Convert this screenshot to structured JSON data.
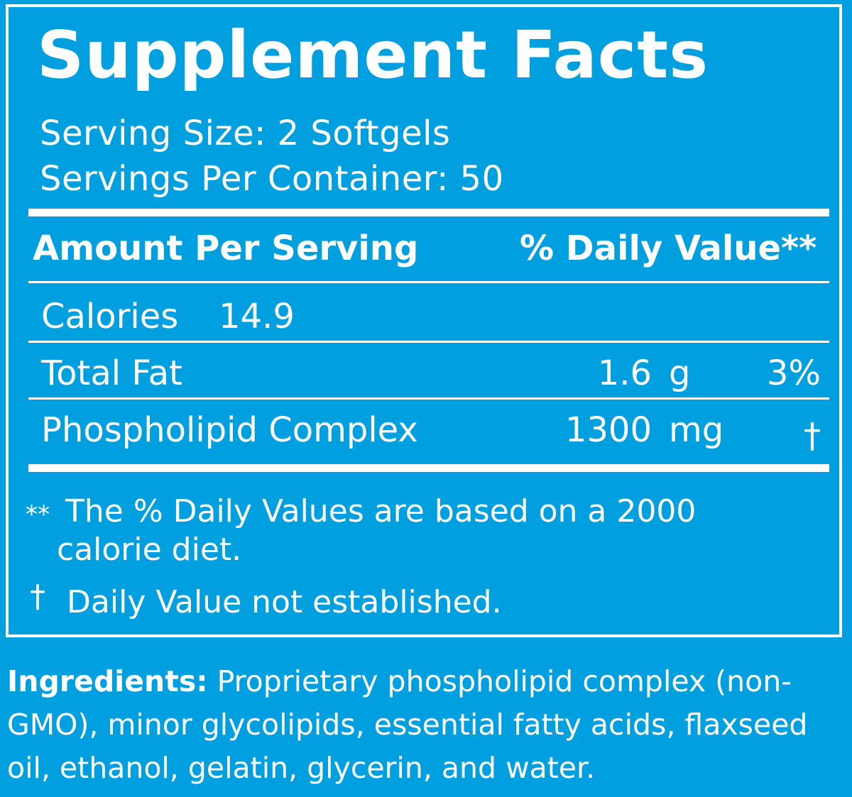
{
  "panel": {
    "title": "Supplement Facts",
    "serving_size": "Serving Size: 2 Softgels",
    "servings_per_container": "Servings Per Container: 50",
    "amount_header": "Amount Per Serving",
    "dv_header": "% Daily Value**",
    "rows": [
      {
        "label": "Calories",
        "amount": "14.9",
        "unit": "",
        "dv": ""
      },
      {
        "label": "Total Fat",
        "amount": "1.6",
        "unit": "g",
        "dv": "3%"
      },
      {
        "label": "Phospholipid Complex",
        "amount": "1300",
        "unit": "mg",
        "dv": "†"
      }
    ],
    "footnote_1_mark": "**",
    "footnote_1_line1": "The % Daily Values are based on a 2000",
    "footnote_1_line2": "calorie diet.",
    "footnote_2_mark": "†",
    "footnote_2_text": "Daily Value not established."
  },
  "ingredients": {
    "label": "Ingredients:",
    "text": " Proprietary phospholipid complex (non-GMO), minor glycolipids, essential fatty acids, flaxseed oil, ethanol, gelatin, glycerin, and water."
  },
  "colors": {
    "background": "#009fdf",
    "foreground": "#ffffff"
  }
}
